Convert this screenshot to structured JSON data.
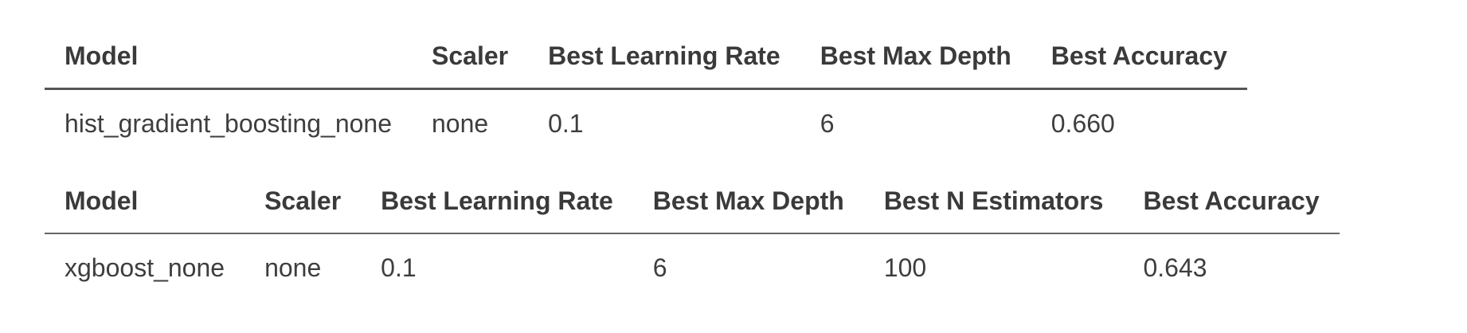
{
  "tables": [
    {
      "headers": [
        "Model",
        "Scaler",
        "Best Learning Rate",
        "Best Max Depth",
        "Best Accuracy"
      ],
      "rows": [
        [
          "hist_gradient_boosting_none",
          "none",
          "0.1",
          "6",
          "0.660"
        ]
      ]
    },
    {
      "headers": [
        "Model",
        "Scaler",
        "Best Learning Rate",
        "Best Max Depth",
        "Best N Estimators",
        "Best Accuracy"
      ],
      "rows": [
        [
          "xgboost_none",
          "none",
          "0.1",
          "6",
          "100",
          "0.643"
        ]
      ]
    }
  ]
}
